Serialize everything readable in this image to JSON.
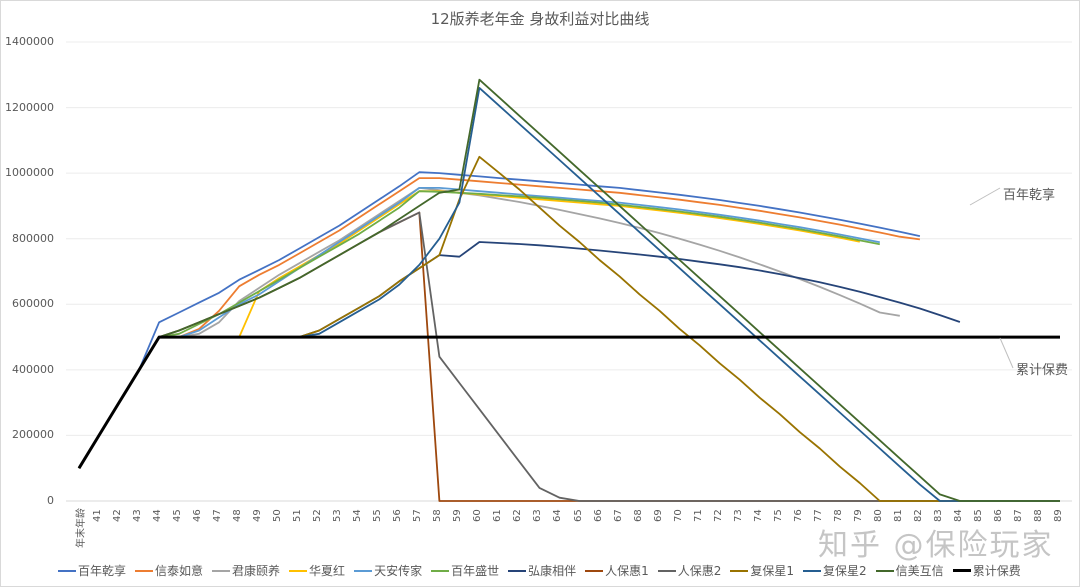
{
  "chart_data": {
    "type": "line",
    "title": "12版养老年金 身故利益对比曲线",
    "xlabel": "年末年龄",
    "ylabel": "",
    "ylim": [
      0,
      1400000
    ],
    "yticks": [
      0,
      200000,
      400000,
      600000,
      800000,
      1000000,
      1200000,
      1400000
    ],
    "grid": true,
    "legend_position": "bottom",
    "x": [
      "年末年龄",
      "41",
      "42",
      "43",
      "44",
      "45",
      "46",
      "47",
      "48",
      "49",
      "50",
      "51",
      "52",
      "53",
      "54",
      "55",
      "56",
      "57",
      "58",
      "59",
      "60",
      "61",
      "62",
      "63",
      "64",
      "65",
      "66",
      "67",
      "68",
      "69",
      "70",
      "71",
      "72",
      "73",
      "74",
      "75",
      "76",
      "77",
      "78",
      "79",
      "80",
      "81",
      "82",
      "83",
      "84",
      "85",
      "86",
      "87",
      "88",
      "89"
    ],
    "series": [
      {
        "name": "百年乾享",
        "color": "#4472c4",
        "values": [
          100000,
          200000,
          300000,
          400000,
          545000,
          575000,
          605000,
          635000,
          675000,
          705000,
          735000,
          770000,
          805000,
          840000,
          880000,
          920000,
          960000,
          1003000,
          1000000,
          995000,
          990000,
          985000,
          980000,
          975000,
          970000,
          965000,
          960000,
          955000,
          948000,
          941000,
          934000,
          926000,
          918000,
          909000,
          900000,
          890000,
          880000,
          869000,
          858000,
          846000,
          834000,
          821000,
          808000,
          null,
          null,
          null,
          null,
          null,
          null,
          null
        ]
      },
      {
        "name": "信泰如意",
        "color": "#ed7d31",
        "values": [
          100000,
          200000,
          300000,
          400000,
          500000,
          500000,
          525000,
          580000,
          655000,
          690000,
          720000,
          755000,
          790000,
          825000,
          865000,
          905000,
          945000,
          985000,
          985000,
          980000,
          975000,
          970000,
          965000,
          960000,
          955000,
          950000,
          945000,
          940000,
          933000,
          926000,
          919000,
          911000,
          903000,
          894000,
          885000,
          875000,
          865000,
          854000,
          843000,
          831000,
          819000,
          806000,
          798000,
          null,
          null,
          null,
          null,
          null,
          null,
          null
        ]
      },
      {
        "name": "君康颐养",
        "color": "#a5a5a5",
        "values": [
          100000,
          200000,
          300000,
          400000,
          500000,
          500000,
          510000,
          545000,
          610000,
          650000,
          690000,
          725000,
          760000,
          795000,
          835000,
          875000,
          915000,
          955000,
          948000,
          940000,
          932000,
          922000,
          912000,
          900000,
          888000,
          875000,
          862000,
          848000,
          833000,
          817000,
          800000,
          782000,
          763000,
          743000,
          722000,
          700000,
          677000,
          653000,
          628000,
          602000,
          575000,
          565000,
          null,
          null,
          null,
          null,
          null,
          null,
          null,
          null
        ]
      },
      {
        "name": "华夏红",
        "color": "#ffc000",
        "values": [
          100000,
          200000,
          300000,
          400000,
          500000,
          500000,
          500000,
          500000,
          500000,
          640000,
          680000,
          715000,
          750000,
          785000,
          825000,
          865000,
          905000,
          945000,
          945000,
          940000,
          935000,
          930000,
          925000,
          920000,
          915000,
          910000,
          905000,
          900000,
          893000,
          886000,
          879000,
          871000,
          863000,
          854000,
          845000,
          835000,
          825000,
          814000,
          803000,
          791000,
          null,
          null,
          null,
          null,
          null,
          null,
          null,
          null,
          null,
          null
        ]
      },
      {
        "name": "天安传家",
        "color": "#5b9bd5",
        "values": [
          100000,
          200000,
          300000,
          400000,
          500000,
          500000,
          520000,
          560000,
          600000,
          630000,
          670000,
          710000,
          750000,
          790000,
          830000,
          870000,
          910000,
          955000,
          955000,
          950000,
          945000,
          940000,
          935000,
          930000,
          925000,
          920000,
          915000,
          910000,
          903000,
          896000,
          889000,
          881000,
          873000,
          864000,
          855000,
          845000,
          835000,
          824000,
          813000,
          801000,
          789000,
          null,
          null,
          null,
          null,
          null,
          null,
          null,
          null,
          null
        ]
      },
      {
        "name": "百年盛世",
        "color": "#70ad47",
        "values": [
          100000,
          200000,
          300000,
          400000,
          500000,
          510000,
          540000,
          570000,
          605000,
          640000,
          675000,
          710000,
          745000,
          780000,
          815000,
          855000,
          895000,
          945000,
          943000,
          940000,
          937000,
          933000,
          929000,
          925000,
          920000,
          915000,
          910000,
          904000,
          897000,
          890000,
          883000,
          875000,
          867000,
          858000,
          849000,
          839000,
          829000,
          818000,
          807000,
          795000,
          783000,
          null,
          null,
          null,
          null,
          null,
          null,
          null,
          null,
          null
        ]
      },
      {
        "name": "弘康相伴",
        "color": "#264478",
        "values": [
          100000,
          200000,
          300000,
          400000,
          500000,
          500000,
          500000,
          500000,
          500000,
          500000,
          500000,
          500000,
          520000,
          555000,
          590000,
          625000,
          670000,
          710000,
          750000,
          745000,
          790000,
          787000,
          784000,
          780000,
          775000,
          770000,
          764000,
          758000,
          752000,
          745000,
          738000,
          730000,
          722000,
          713000,
          703000,
          692000,
          680000,
          667000,
          653000,
          638000,
          622000,
          605000,
          587000,
          567000,
          546000,
          null,
          null,
          null,
          null,
          null
        ]
      },
      {
        "name": "人保惠1",
        "color": "#9e480e",
        "values": [
          100000,
          200000,
          300000,
          400000,
          500000,
          520000,
          545000,
          570000,
          595000,
          620000,
          650000,
          680000,
          715000,
          750000,
          785000,
          820000,
          850000,
          880000,
          0,
          0,
          0,
          0,
          0,
          0,
          0,
          0,
          0,
          0,
          0,
          0,
          0,
          0,
          0,
          0,
          0,
          0,
          0,
          0,
          0,
          0,
          0,
          0,
          0,
          0,
          0,
          0,
          0,
          0,
          0,
          0
        ]
      },
      {
        "name": "人保惠2",
        "color": "#636363",
        "values": [
          100000,
          200000,
          300000,
          400000,
          500000,
          520000,
          545000,
          570000,
          595000,
          620000,
          650000,
          680000,
          715000,
          750000,
          785000,
          820000,
          850000,
          880000,
          440000,
          360000,
          280000,
          200000,
          120000,
          40000,
          10000,
          0,
          0,
          0,
          0,
          0,
          0,
          0,
          0,
          0,
          0,
          0,
          0,
          0,
          0,
          0,
          0,
          0,
          0,
          0,
          0,
          0,
          0,
          0,
          0,
          0
        ]
      },
      {
        "name": "复保星1",
        "color": "#997300",
        "values": [
          100000,
          200000,
          300000,
          400000,
          500000,
          500000,
          500000,
          500000,
          500000,
          500000,
          500000,
          500000,
          520000,
          555000,
          590000,
          625000,
          670000,
          710000,
          750000,
          920000,
          1050000,
          1000000,
          950000,
          895000,
          840000,
          790000,
          735000,
          685000,
          630000,
          580000,
          525000,
          475000,
          420000,
          370000,
          315000,
          265000,
          210000,
          160000,
          105000,
          55000,
          0,
          0,
          0,
          0,
          0,
          0,
          0,
          0,
          0,
          0
        ]
      },
      {
        "name": "复保星2",
        "color": "#255e91",
        "values": [
          100000,
          200000,
          300000,
          400000,
          500000,
          500000,
          500000,
          500000,
          500000,
          500000,
          500000,
          500000,
          510000,
          545000,
          580000,
          615000,
          660000,
          720000,
          800000,
          910000,
          1260000,
          1205000,
          1150000,
          1095000,
          1040000,
          985000,
          930000,
          875000,
          820000,
          765000,
          710000,
          655000,
          600000,
          545000,
          490000,
          435000,
          380000,
          325000,
          270000,
          215000,
          160000,
          105000,
          50000,
          0,
          0,
          0,
          0,
          0,
          0,
          0
        ]
      },
      {
        "name": "信美互信",
        "color": "#43682b",
        "values": [
          100000,
          200000,
          300000,
          400000,
          500000,
          520000,
          545000,
          570000,
          595000,
          620000,
          650000,
          680000,
          715000,
          750000,
          785000,
          820000,
          860000,
          900000,
          940000,
          950000,
          1285000,
          1230000,
          1175000,
          1120000,
          1065000,
          1010000,
          955000,
          900000,
          845000,
          790000,
          735000,
          680000,
          625000,
          570000,
          515000,
          460000,
          405000,
          350000,
          295000,
          240000,
          185000,
          130000,
          75000,
          20000,
          0,
          0,
          0,
          0,
          0,
          0
        ]
      },
      {
        "name": "累计保费",
        "color": "#000000",
        "values": [
          100000,
          200000,
          300000,
          400000,
          500000,
          500000,
          500000,
          500000,
          500000,
          500000,
          500000,
          500000,
          500000,
          500000,
          500000,
          500000,
          500000,
          500000,
          500000,
          500000,
          500000,
          500000,
          500000,
          500000,
          500000,
          500000,
          500000,
          500000,
          500000,
          500000,
          500000,
          500000,
          500000,
          500000,
          500000,
          500000,
          500000,
          500000,
          500000,
          500000,
          500000,
          500000,
          500000,
          500000,
          500000,
          500000,
          500000,
          500000,
          500000,
          500000
        ]
      }
    ],
    "annotations": [
      {
        "text": "百年乾享",
        "target_series": "百年乾享"
      },
      {
        "text": "累计保费",
        "target_series": "累计保费"
      }
    ]
  },
  "watermark": "知乎 @保险玩家"
}
